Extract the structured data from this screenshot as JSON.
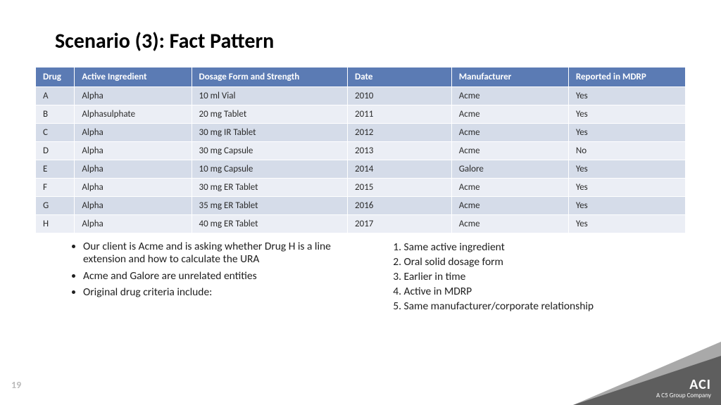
{
  "title": "Scenario (3):  Fact Pattern",
  "table": {
    "headers": [
      "Drug",
      "Active Ingredient",
      "Dosage Form and Strength",
      "Date",
      "Manufacturer",
      "Reported in MDRP"
    ],
    "rows": [
      [
        "A",
        "Alpha",
        "10 ml Vial",
        "2010",
        "Acme",
        "Yes"
      ],
      [
        "B",
        "Alphasulphate",
        "20 mg Tablet",
        "2011",
        "Acme",
        "Yes"
      ],
      [
        "C",
        "Alpha",
        "30 mg IR Tablet",
        "2012",
        "Acme",
        "Yes"
      ],
      [
        "D",
        "Alpha",
        "30 mg Capsule",
        "2013",
        "Acme",
        "No"
      ],
      [
        "E",
        "Alpha",
        "10 mg Capsule",
        "2014",
        "Galore",
        "Yes"
      ],
      [
        "F",
        "Alpha",
        "30 mg ER Tablet",
        "2015",
        "Acme",
        "Yes"
      ],
      [
        "G",
        "Alpha",
        "35 mg ER Tablet",
        "2016",
        "Acme",
        "Yes"
      ],
      [
        "H",
        "Alpha",
        "40 mg ER Tablet",
        "2017",
        "Acme",
        "Yes"
      ]
    ],
    "header_bg": "#5b7bb4",
    "header_fg": "#ffffff",
    "row_even_bg": "#d5dce9",
    "row_odd_bg": "#ebeef5"
  },
  "bullets": [
    "Our client is Acme and is asking whether Drug H is a line extension and how to calculate the URA",
    "Acme and Galore are unrelated entities",
    "Original drug criteria include:"
  ],
  "numbered": [
    "Same active ingredient",
    "Oral solid dosage form",
    "Earlier in time",
    "Active in MDRP",
    "Same manufacturer/corporate relationship"
  ],
  "page_number": "19",
  "brand": {
    "logo": "ACI",
    "tagline": "A C5 Group Company"
  }
}
